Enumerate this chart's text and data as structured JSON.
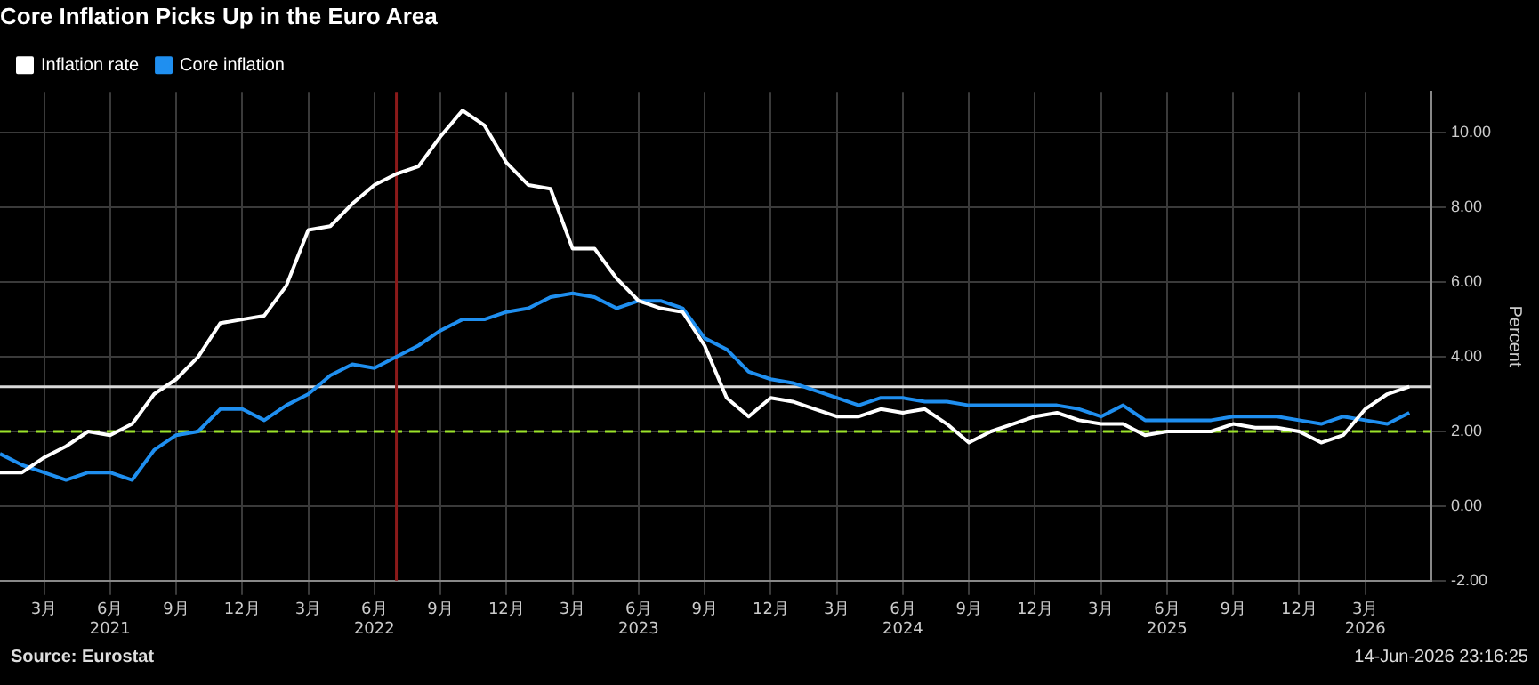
{
  "chart_data": {
    "type": "line",
    "title": "Core Inflation Picks Up in the Euro Area",
    "ylabel": "Percent",
    "x": [
      "2021-01",
      "2021-02",
      "2021-03",
      "2021-04",
      "2021-05",
      "2021-06",
      "2021-07",
      "2021-08",
      "2021-09",
      "2021-10",
      "2021-11",
      "2021-12",
      "2022-01",
      "2022-02",
      "2022-03",
      "2022-04",
      "2022-05",
      "2022-06",
      "2022-07",
      "2022-08",
      "2022-09",
      "2022-10",
      "2022-11",
      "2022-12",
      "2023-01",
      "2023-02",
      "2023-03",
      "2023-04",
      "2023-05",
      "2023-06",
      "2023-07",
      "2023-08",
      "2023-09",
      "2023-10",
      "2023-11",
      "2023-12",
      "2024-01",
      "2024-02",
      "2024-03",
      "2024-04",
      "2024-05",
      "2024-06",
      "2024-07",
      "2024-08",
      "2024-09",
      "2024-10",
      "2024-11",
      "2024-12",
      "2025-01",
      "2025-02",
      "2025-03",
      "2025-04",
      "2025-05",
      "2025-06",
      "2025-07",
      "2025-08",
      "2025-09",
      "2025-10",
      "2025-11",
      "2025-12",
      "2026-01",
      "2026-02",
      "2026-03",
      "2026-04",
      "2026-05"
    ],
    "series": [
      {
        "name": "Inflation rate",
        "color": "#ffffff",
        "values": [
          0.9,
          0.9,
          1.3,
          1.6,
          2.0,
          1.9,
          2.2,
          3.0,
          3.4,
          4.0,
          4.9,
          5.0,
          5.1,
          5.9,
          7.4,
          7.5,
          8.1,
          8.6,
          8.9,
          9.1,
          9.9,
          10.6,
          10.2,
          9.2,
          8.6,
          8.5,
          6.9,
          6.9,
          6.1,
          5.5,
          5.3,
          5.2,
          4.3,
          2.9,
          2.4,
          2.9,
          2.8,
          2.6,
          2.4,
          2.4,
          2.6,
          2.5,
          2.6,
          2.2,
          1.7,
          2.0,
          2.2,
          2.4,
          2.5,
          2.3,
          2.2,
          2.2,
          1.9,
          2.0,
          2.0,
          2.0,
          2.2,
          2.1,
          2.1,
          2.0,
          1.7,
          1.9,
          2.6,
          3.0,
          3.2
        ]
      },
      {
        "name": "Core inflation",
        "color": "#1f8ff0",
        "values": [
          1.4,
          1.1,
          0.9,
          0.7,
          0.9,
          0.9,
          0.7,
          1.5,
          1.9,
          2.0,
          2.6,
          2.6,
          2.3,
          2.7,
          3.0,
          3.5,
          3.8,
          3.7,
          4.0,
          4.3,
          4.7,
          5.0,
          5.0,
          5.2,
          5.3,
          5.6,
          5.7,
          5.6,
          5.3,
          5.5,
          5.5,
          5.3,
          4.5,
          4.2,
          3.6,
          3.4,
          3.3,
          3.1,
          2.9,
          2.7,
          2.9,
          2.9,
          2.8,
          2.8,
          2.7,
          2.7,
          2.7,
          2.7,
          2.7,
          2.6,
          2.4,
          2.7,
          2.3,
          2.3,
          2.3,
          2.3,
          2.4,
          2.4,
          2.4,
          2.3,
          2.2,
          2.4,
          2.3,
          2.2,
          2.5
        ]
      }
    ],
    "xlim": [
      "2021-01",
      "2026-06"
    ],
    "xticks": [
      {
        "value": "2021-03",
        "label": "3月"
      },
      {
        "value": "2021-06",
        "label": "6月\n2021"
      },
      {
        "value": "2021-09",
        "label": "9月"
      },
      {
        "value": "2021-12",
        "label": "12月"
      },
      {
        "value": "2022-03",
        "label": "3月"
      },
      {
        "value": "2022-06",
        "label": "6月\n2022"
      },
      {
        "value": "2022-09",
        "label": "9月"
      },
      {
        "value": "2022-12",
        "label": "12月"
      },
      {
        "value": "2023-03",
        "label": "3月"
      },
      {
        "value": "2023-06",
        "label": "6月\n2023"
      },
      {
        "value": "2023-09",
        "label": "9月"
      },
      {
        "value": "2023-12",
        "label": "12月"
      },
      {
        "value": "2024-03",
        "label": "3月"
      },
      {
        "value": "2024-06",
        "label": "6月\n2024"
      },
      {
        "value": "2024-09",
        "label": "9月"
      },
      {
        "value": "2024-12",
        "label": "12月"
      },
      {
        "value": "2025-03",
        "label": "3月"
      },
      {
        "value": "2025-06",
        "label": "6月\n2025"
      },
      {
        "value": "2025-09",
        "label": "9月"
      },
      {
        "value": "2025-12",
        "label": "12月"
      },
      {
        "value": "2026-03",
        "label": "3月\n2026"
      }
    ],
    "ylim": [
      -2,
      11.1
    ],
    "yticks": [
      {
        "value": -2,
        "label": "-2.00"
      },
      {
        "value": 0,
        "label": "0.00"
      },
      {
        "value": 2,
        "label": "2.00"
      },
      {
        "value": 4,
        "label": "4.00"
      },
      {
        "value": 6,
        "label": "6.00"
      },
      {
        "value": 8,
        "label": "8.00"
      },
      {
        "value": 10,
        "label": "10.00"
      }
    ],
    "ref_lines": [
      {
        "axis": "y",
        "value": 3.2,
        "color": "#d9d9d9",
        "line_style": "solid"
      },
      {
        "axis": "y",
        "value": 2,
        "color": "#9be32a",
        "line_style": "dashed"
      },
      {
        "axis": "x",
        "value": "2022-07",
        "color": "#8b1a1a",
        "line_style": "solid"
      }
    ],
    "annotations": [
      "Source: Eurostat",
      "14-Jun-2026 23:16:25"
    ],
    "grid": true,
    "legend": "top left",
    "marker": "none",
    "line_style": "solid"
  }
}
